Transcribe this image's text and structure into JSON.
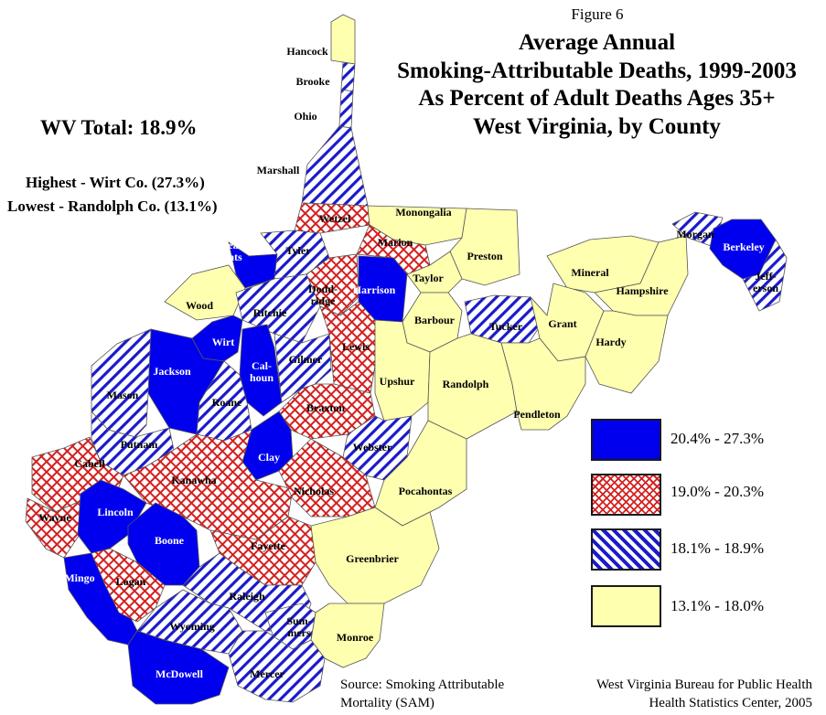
{
  "figure_label": "Figure 6",
  "title_lines": [
    "Average Annual",
    "Smoking-Attributable Deaths, 1999-2003",
    "As Percent of Adult Deaths Ages 35+",
    "West Virginia, by County"
  ],
  "summary": {
    "total": "WV Total:  18.9%",
    "highest": "Highest - Wirt Co. (27.3%)",
    "lowest": "Lowest - Randolph Co. (13.1%)"
  },
  "legend": [
    {
      "category": "solid",
      "label": "20.4% - 27.3%",
      "color": "#0000ee"
    },
    {
      "category": "crosshatch",
      "label": "19.0% - 20.3%",
      "color": "#d42020"
    },
    {
      "category": "diagonal",
      "label": "18.1% - 18.9%",
      "color": "#1a1acc"
    },
    {
      "category": "plain",
      "label": "13.1% - 18.0%",
      "color": "#ffffb0"
    }
  ],
  "counties": [
    {
      "name": "Hancock",
      "category": "plain"
    },
    {
      "name": "Brooke",
      "category": "diagonal"
    },
    {
      "name": "Ohio",
      "category": "diagonal"
    },
    {
      "name": "Marshall",
      "category": "diagonal"
    },
    {
      "name": "Wetzel",
      "category": "crosshatch"
    },
    {
      "name": "Monongalia",
      "category": "plain"
    },
    {
      "name": "Marion",
      "category": "crosshatch"
    },
    {
      "name": "Preston",
      "category": "plain"
    },
    {
      "name": "Pleas-\nants",
      "category": "solid"
    },
    {
      "name": "Tyler",
      "category": "diagonal"
    },
    {
      "name": "Dodd-\nridge",
      "category": "crosshatch"
    },
    {
      "name": "Harrison",
      "category": "solid"
    },
    {
      "name": "Taylor",
      "category": "plain"
    },
    {
      "name": "Wood",
      "category": "plain"
    },
    {
      "name": "Ritchie",
      "category": "diagonal"
    },
    {
      "name": "Barbour",
      "category": "plain"
    },
    {
      "name": "Tucker",
      "category": "diagonal"
    },
    {
      "name": "Mineral",
      "category": "plain"
    },
    {
      "name": "Hampshire",
      "category": "plain"
    },
    {
      "name": "Morgan",
      "category": "diagonal"
    },
    {
      "name": "Berkeley",
      "category": "solid"
    },
    {
      "name": "Jeff-\nerson",
      "category": "diagonal"
    },
    {
      "name": "Wirt",
      "category": "solid"
    },
    {
      "name": "Cal-\nhoun",
      "category": "solid"
    },
    {
      "name": "Gilmer",
      "category": "diagonal"
    },
    {
      "name": "Lewis",
      "category": "crosshatch"
    },
    {
      "name": "Grant",
      "category": "plain"
    },
    {
      "name": "Hardy",
      "category": "plain"
    },
    {
      "name": "Jackson",
      "category": "solid"
    },
    {
      "name": "Mason",
      "category": "diagonal"
    },
    {
      "name": "Roane",
      "category": "diagonal"
    },
    {
      "name": "Upshur",
      "category": "plain"
    },
    {
      "name": "Randolph",
      "category": "plain"
    },
    {
      "name": "Braxton",
      "category": "crosshatch"
    },
    {
      "name": "Pendleton",
      "category": "plain"
    },
    {
      "name": "Putnam",
      "category": "diagonal"
    },
    {
      "name": "Webster",
      "category": "diagonal"
    },
    {
      "name": "Clay",
      "category": "solid"
    },
    {
      "name": "Cabell",
      "category": "crosshatch"
    },
    {
      "name": "Kanawha",
      "category": "crosshatch"
    },
    {
      "name": "Nicholas",
      "category": "crosshatch"
    },
    {
      "name": "Pocahontas",
      "category": "plain"
    },
    {
      "name": "Wayne",
      "category": "crosshatch"
    },
    {
      "name": "Lincoln",
      "category": "solid"
    },
    {
      "name": "Boone",
      "category": "solid"
    },
    {
      "name": "Fayette",
      "category": "crosshatch"
    },
    {
      "name": "Greenbrier",
      "category": "plain"
    },
    {
      "name": "Mingo",
      "category": "solid"
    },
    {
      "name": "Logan",
      "category": "crosshatch"
    },
    {
      "name": "Raleigh",
      "category": "diagonal"
    },
    {
      "name": "Wyoming",
      "category": "diagonal"
    },
    {
      "name": "Sum-\nmers",
      "category": "diagonal"
    },
    {
      "name": "Monroe",
      "category": "plain"
    },
    {
      "name": "McDowell",
      "category": "solid"
    },
    {
      "name": "Mercer",
      "category": "diagonal"
    }
  ],
  "source_lines": [
    "Source:  Smoking Attributable",
    "Mortality (SAM)"
  ],
  "credit_lines": [
    "West Virginia Bureau for Public Health",
    "Health Statistics Center, 2005"
  ]
}
